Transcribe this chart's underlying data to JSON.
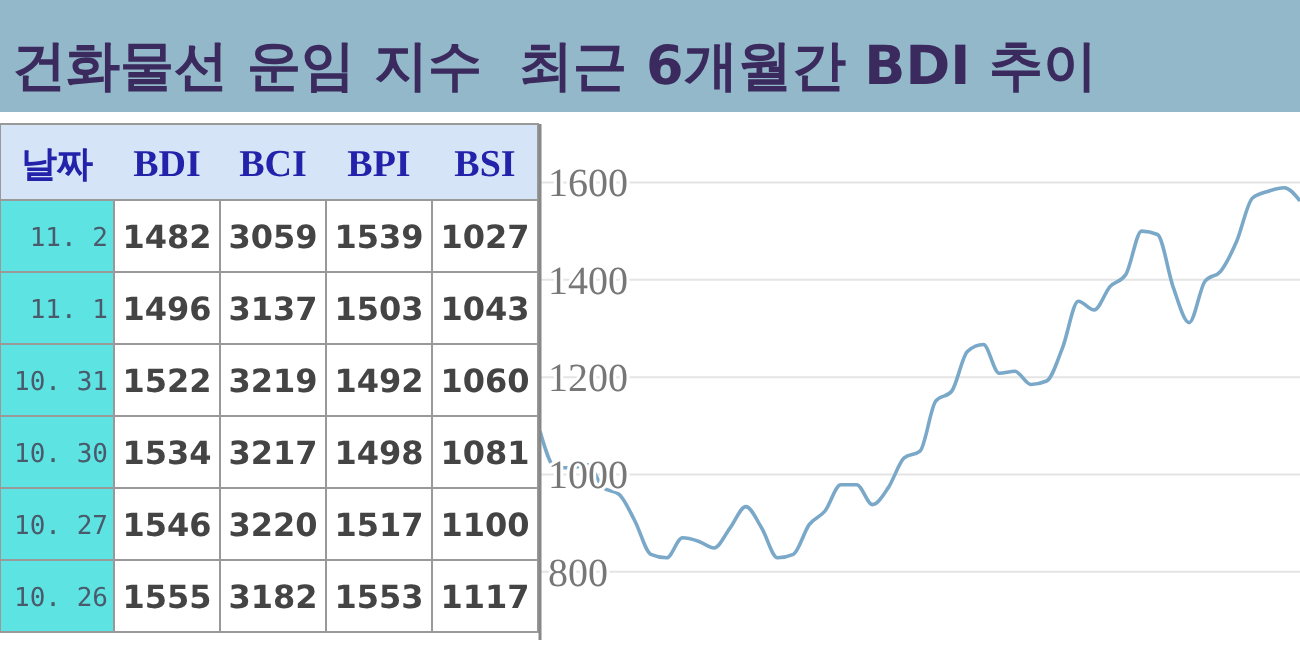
{
  "chart_data": [
    {
      "type": "other",
      "xlabel": "날짜",
      "categories": [
        "11. 2",
        "11. 1",
        "10. 31",
        "10. 30",
        "10. 27",
        "10. 26"
      ],
      "data_labels": true,
      "series": [
        {
          "name": "BDI",
          "values": [
            1482,
            1496,
            1522,
            1534,
            1546,
            1555
          ]
        },
        {
          "name": "BCI",
          "values": [
            3059,
            3137,
            3219,
            3217,
            3220,
            3182
          ]
        },
        {
          "name": "BPI",
          "values": [
            1539,
            1503,
            1492,
            1498,
            1517,
            1553
          ]
        },
        {
          "name": "BSI",
          "values": [
            1027,
            1043,
            1060,
            1081,
            1100,
            1117
          ]
        }
      ]
    },
    {
      "type": "line",
      "title": "건화물선 운임 지수  최근 6개월간 BDI 추이",
      "categories": [
        null,
        null,
        null,
        null,
        null,
        null,
        null,
        null,
        null,
        null,
        null,
        null,
        null,
        null,
        null,
        null,
        null,
        null,
        null,
        null,
        null,
        null,
        null,
        null,
        null,
        null,
        null,
        null,
        null,
        null,
        null,
        null,
        null,
        null,
        null,
        null,
        null,
        null,
        null,
        null,
        null,
        null,
        null,
        null,
        null,
        null,
        null,
        null,
        null
      ],
      "values": [
        1089,
        1014,
        1014,
        1020,
        973,
        959,
        904,
        836,
        829,
        870,
        863,
        849,
        890,
        934,
        890,
        829,
        836,
        897,
        925,
        979,
        979,
        938,
        973,
        1034,
        1048,
        1151,
        1171,
        1253,
        1267,
        1208,
        1212,
        1185,
        1192,
        1260,
        1356,
        1338,
        1386,
        1411,
        1500,
        1493,
        1384,
        1312,
        1397,
        1418,
        1479,
        1568,
        1582,
        1589,
        1562
      ],
      "color": "#7aa8c8",
      "ylim": [
        660,
        1720
      ],
      "yticks": [
        800,
        1000,
        1200,
        1400,
        1600
      ],
      "grid": "y",
      "marker": "none",
      "line_style": "solid"
    }
  ]
}
